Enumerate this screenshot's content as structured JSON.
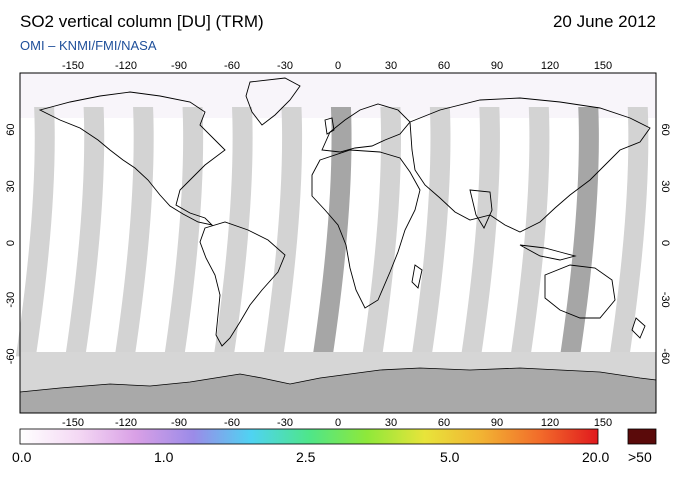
{
  "header": {
    "title": "SO2 vertical column [DU] (TRM)",
    "date": "20 June 2012",
    "credit": "OMI  –  KNMI/FMI/NASA"
  },
  "axes": {
    "longitude_ticks": [
      "-150",
      "-120",
      "-90",
      "-60",
      "-30",
      "0",
      "30",
      "60",
      "90",
      "120",
      "150"
    ],
    "latitude_ticks": [
      "60",
      "30",
      "0",
      "-30",
      "-60"
    ]
  },
  "colorbar": {
    "labels": [
      "0.0",
      "1.0",
      "2.5",
      "5.0",
      "20.0"
    ],
    "overflow_label": ">50",
    "colors": [
      "#ffffff",
      "#f4d9f4",
      "#d9a0e6",
      "#9b8be8",
      "#4fd3f2",
      "#4ee68a",
      "#8ee83a",
      "#e8e43a",
      "#f2b233",
      "#f26b2a",
      "#e0191e"
    ],
    "overflow_color": "#5a0a0a"
  },
  "map_colors": {
    "background": "#ffffff",
    "swath_gap": "#d3d3d3",
    "swath_dark": "#a6a6a6",
    "antarctica": "#a9a9a9",
    "polar_night": "#d6d6d6"
  }
}
